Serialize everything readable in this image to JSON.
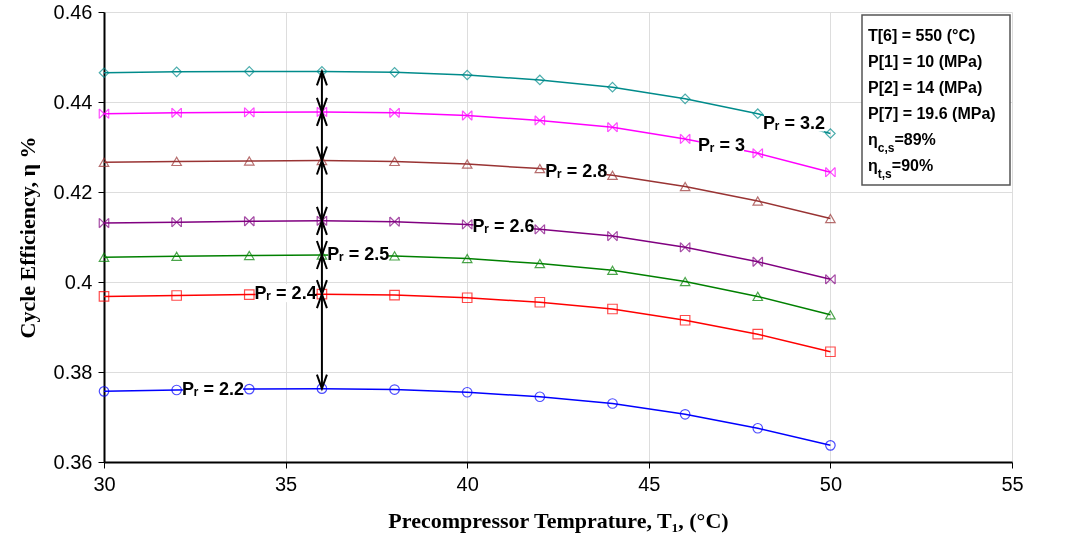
{
  "chart_data": {
    "type": "line",
    "xlabel": "Precompressor Temprature, T₁, (°C)",
    "ylabel": "Cycle Efficiency, η %",
    "x": [
      30,
      32,
      34,
      36,
      38,
      40,
      42,
      44,
      46,
      48,
      50
    ],
    "series": [
      {
        "color": "#0000ff",
        "marker": "circle",
        "values": [
          0.3757,
          0.376,
          0.3762,
          0.3763,
          0.3761,
          0.3755,
          0.3745,
          0.373,
          0.3706,
          0.3675,
          0.3637
        ]
      },
      {
        "color": "#ff0000",
        "marker": "square",
        "values": [
          0.3968,
          0.397,
          0.3972,
          0.3973,
          0.3971,
          0.3965,
          0.3955,
          0.394,
          0.3915,
          0.3884,
          0.3845
        ]
      },
      {
        "color": "#008000",
        "marker": "triangle",
        "values": [
          0.4055,
          0.4057,
          0.4059,
          0.406,
          0.4058,
          0.4052,
          0.4041,
          0.4026,
          0.4001,
          0.3968,
          0.3927
        ]
      },
      {
        "color": "#800080",
        "marker": "cross",
        "values": [
          0.4131,
          0.4133,
          0.4135,
          0.4136,
          0.4134,
          0.4128,
          0.4117,
          0.4102,
          0.4077,
          0.4045,
          0.4006
        ]
      },
      {
        "color": "#993333",
        "marker": "triangle",
        "values": [
          0.4266,
          0.4268,
          0.4269,
          0.427,
          0.4268,
          0.4262,
          0.4252,
          0.4237,
          0.4212,
          0.418,
          0.4141
        ]
      },
      {
        "color": "#ff00ff",
        "marker": "cross",
        "values": [
          0.4374,
          0.4376,
          0.4377,
          0.4378,
          0.4376,
          0.437,
          0.4359,
          0.4344,
          0.4318,
          0.4286,
          0.4244
        ]
      },
      {
        "color": "#008b8b",
        "marker": "diamond",
        "values": [
          0.4465,
          0.4467,
          0.4468,
          0.4468,
          0.4466,
          0.446,
          0.4449,
          0.4433,
          0.4407,
          0.4374,
          0.433
        ]
      }
    ],
    "xlim": [
      30,
      55
    ],
    "xticks": [
      30,
      35,
      40,
      45,
      50,
      55
    ],
    "ylim": [
      0.36,
      0.46
    ],
    "yticks": [
      0.36,
      0.38,
      {
        "value": 0.4,
        "label": "0.4"
      },
      0.42,
      0.44,
      0.46
    ],
    "grid": true,
    "annotations": [
      {
        "text": "Pᵣ = 2.2",
        "x": 33,
        "y": 0.3761
      },
      {
        "text": "Pᵣ = 2.4",
        "x": 35,
        "y": 0.3973
      },
      {
        "text": "Pᵣ = 2.5",
        "x": 37,
        "y": 0.4059
      },
      {
        "text": "Pᵣ = 2.6",
        "x": 41,
        "y": 0.4123
      },
      {
        "text": "Pᵣ = 2.8",
        "x": 43,
        "y": 0.4245
      },
      {
        "text": "Pᵣ = 3",
        "x": 47,
        "y": 0.4302
      },
      {
        "text": "Pᵣ = 3.2",
        "x": 49,
        "y": 0.4352
      },
      "T[6] = 550 (°C)",
      "P[1] = 10 (MPa)",
      "P[2] = 14 (MPa)",
      "P[7] = 19.6 (MPa)",
      "η$_{c,s}$=89%",
      "η$_{t,s}$=90%"
    ]
  }
}
